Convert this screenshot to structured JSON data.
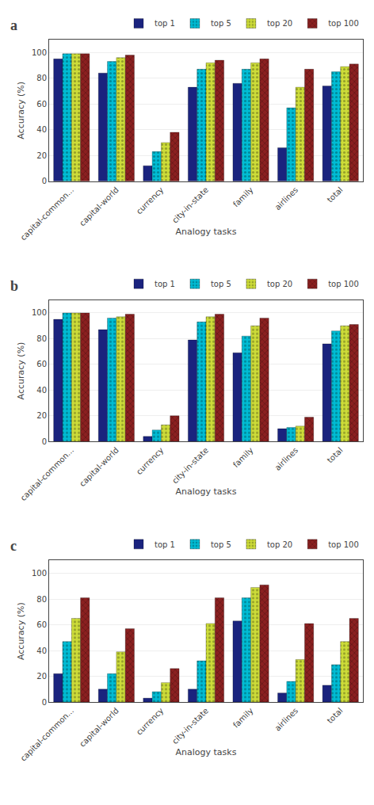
{
  "chart_data": [
    {
      "type": "bar",
      "title": "a",
      "xlabel": "Analogy tasks",
      "ylabel": "Accuracy (%)",
      "categories": [
        "capital-common...",
        "capital-world",
        "currency",
        "city-in-state",
        "family",
        "airlines",
        "total"
      ],
      "series": [
        {
          "name": "top 1",
          "color": "#1a237e",
          "values": [
            95,
            84,
            12,
            73,
            76,
            26,
            74
          ]
        },
        {
          "name": "top 5",
          "color": "#00bcd4",
          "values": [
            99,
            93,
            23,
            87,
            87,
            57,
            85
          ]
        },
        {
          "name": "top 20",
          "color": "#cddc39",
          "values": [
            99,
            96,
            30,
            92,
            92,
            73,
            89
          ]
        },
        {
          "name": "top 100",
          "color": "#8b2020",
          "values": [
            99,
            98,
            38,
            94,
            95,
            87,
            91
          ]
        }
      ],
      "ylim": [
        0,
        110
      ],
      "yticks": [
        0,
        20,
        40,
        60,
        80,
        100
      ],
      "grid": true,
      "legend": "top"
    },
    {
      "type": "bar",
      "title": "b",
      "xlabel": "Analogy tasks",
      "ylabel": "Accuracy (%)",
      "categories": [
        "capital-common...",
        "capital-world",
        "currency",
        "city-in-state",
        "family",
        "airlines",
        "total"
      ],
      "series": [
        {
          "name": "top 1",
          "color": "#1a237e",
          "values": [
            95,
            87,
            4,
            79,
            69,
            10,
            76
          ]
        },
        {
          "name": "top 5",
          "color": "#00bcd4",
          "values": [
            100,
            96,
            9,
            93,
            82,
            11,
            86
          ]
        },
        {
          "name": "top 20",
          "color": "#cddc39",
          "values": [
            100,
            97,
            13,
            97,
            90,
            12,
            90
          ]
        },
        {
          "name": "top 100",
          "color": "#8b2020",
          "values": [
            100,
            99,
            20,
            99,
            96,
            19,
            91
          ]
        }
      ],
      "ylim": [
        0,
        110
      ],
      "yticks": [
        0,
        20,
        40,
        60,
        80,
        100
      ],
      "grid": true,
      "legend": "top"
    },
    {
      "type": "bar",
      "title": "c",
      "xlabel": "Analogy tasks",
      "ylabel": "Accuracy (%)",
      "categories": [
        "capital-common...",
        "capital-world",
        "currency",
        "city-in-state",
        "family",
        "airlines",
        "total"
      ],
      "series": [
        {
          "name": "top 1",
          "color": "#1a237e",
          "values": [
            22,
            10,
            3,
            10,
            63,
            7,
            13
          ]
        },
        {
          "name": "top 5",
          "color": "#00bcd4",
          "values": [
            47,
            22,
            8,
            32,
            81,
            16,
            29
          ]
        },
        {
          "name": "top 20",
          "color": "#cddc39",
          "values": [
            65,
            39,
            15,
            61,
            89,
            33,
            47
          ]
        },
        {
          "name": "top 100",
          "color": "#8b2020",
          "values": [
            81,
            57,
            26,
            81,
            91,
            61,
            65
          ]
        }
      ],
      "ylim": [
        0,
        110
      ],
      "yticks": [
        0,
        20,
        40,
        60,
        80,
        100
      ],
      "grid": true,
      "legend": "top"
    }
  ]
}
